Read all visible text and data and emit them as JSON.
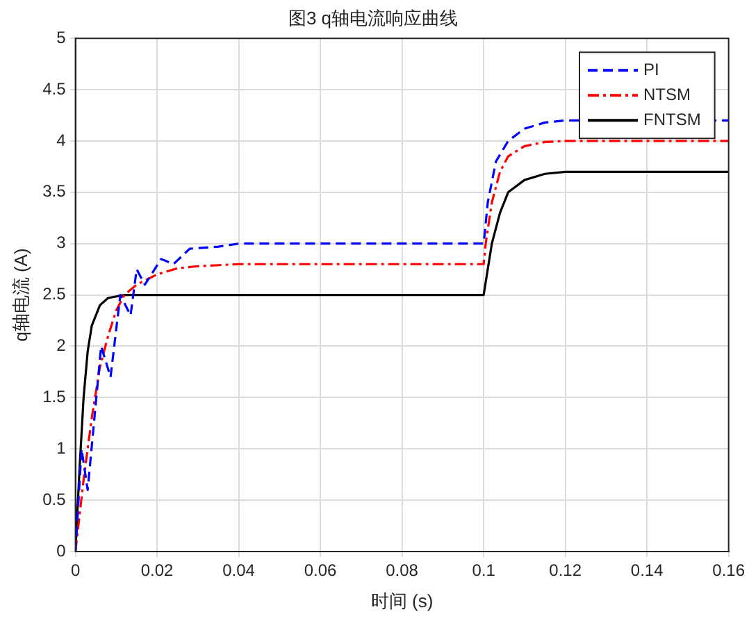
{
  "chart_data": {
    "type": "line",
    "title": "图3 q轴电流响应曲线",
    "xlabel": "时间 (s)",
    "ylabel": "q轴电流 (A)",
    "xlim": [
      0,
      0.16
    ],
    "xticks": [
      0,
      0.02,
      0.04,
      0.06,
      0.08,
      0.1,
      0.12,
      0.14,
      0.16
    ],
    "ylim": [
      0,
      5
    ],
    "yticks": [
      0,
      0.5,
      1,
      1.5,
      2,
      2.5,
      3,
      3.5,
      4,
      4.5,
      5
    ],
    "grid": true,
    "legend": "top right",
    "marker": "none",
    "series": [
      {
        "name": "PI",
        "color": "#0000ff",
        "line_style": "dashed",
        "x": [
          0,
          0.0015,
          0.003,
          0.0063,
          0.0086,
          0.011,
          0.0135,
          0.015,
          0.017,
          0.021,
          0.024,
          0.028,
          0.035,
          0.04,
          0.1,
          0.101,
          0.103,
          0.106,
          0.11,
          0.115,
          0.12,
          0.16
        ],
        "values": [
          0,
          1,
          0.6,
          2,
          1.7,
          2.5,
          2.3,
          2.75,
          2.6,
          2.85,
          2.8,
          2.95,
          2.97,
          3,
          3,
          3.4,
          3.8,
          4,
          4.12,
          4.18,
          4.2,
          4.2
        ]
      },
      {
        "name": "NTSM",
        "color": "#ff0000",
        "line_style": "dashdot",
        "x": [
          0,
          0.002,
          0.004,
          0.006,
          0.008,
          0.01,
          0.012,
          0.015,
          0.02,
          0.025,
          0.03,
          0.04,
          0.1,
          0.1005,
          0.102,
          0.104,
          0.106,
          0.11,
          0.115,
          0.12,
          0.16
        ],
        "values": [
          0,
          0.7,
          1.3,
          1.8,
          2.1,
          2.35,
          2.5,
          2.6,
          2.7,
          2.76,
          2.78,
          2.8,
          2.8,
          3,
          3.4,
          3.7,
          3.85,
          3.95,
          3.99,
          4,
          4
        ]
      },
      {
        "name": "FNTSM",
        "color": "#000000",
        "line_style": "solid",
        "x": [
          0,
          0.001,
          0.002,
          0.003,
          0.004,
          0.006,
          0.008,
          0.012,
          0.1,
          0.102,
          0.104,
          0.106,
          0.11,
          0.115,
          0.12,
          0.16
        ],
        "values": [
          0,
          0.8,
          1.5,
          1.95,
          2.2,
          2.4,
          2.47,
          2.5,
          2.5,
          3,
          3.3,
          3.5,
          3.62,
          3.68,
          3.7,
          3.7
        ]
      }
    ]
  }
}
